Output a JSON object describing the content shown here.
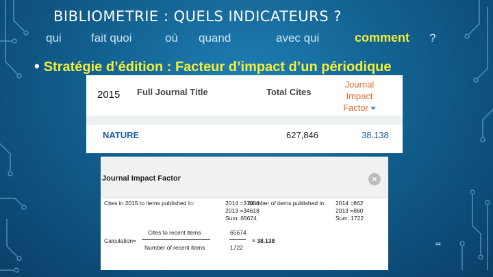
{
  "slide": {
    "title": "BIBLIOMETRIE : QUELS INDICATEURS ?",
    "questions": [
      "qui",
      "fait quoi",
      "où",
      "quand",
      "avec qui",
      "comment",
      "?"
    ],
    "bullet": "Stratégie d’édition : Facteur d’impact d’un périodique",
    "slide_number": "44"
  },
  "jcr_table": {
    "year": "2015",
    "col_title": "Full Journal Title",
    "col_cites": "Total Cites",
    "col_jif_line1": "Journal",
    "col_jif_line2": "Impact",
    "col_jif_line3": "Factor",
    "row": {
      "title": "NATURE",
      "cites": "627,846",
      "jif": "38.138"
    }
  },
  "jif_popup": {
    "title": "Journal Impact Factor",
    "cites_label": "Cites in 2015 to items published in:",
    "cites_2014": "2014 =31056",
    "cites_2013": "2013 =34618",
    "cites_sum": "Sum:  65674",
    "items_label": "Number of items published in:",
    "items_2014": "2014 =862",
    "items_2013": "2013 =860",
    "items_sum": "Sum:   1722",
    "calc_label": "Calculation=",
    "num_label": "Cites to recent items",
    "den_label": "Number of recent items",
    "num_value": "65674",
    "den_value": "1722",
    "result": "= 38.138"
  },
  "colors": {
    "accent_yellow": "#f2ef3c",
    "jif_orange": "#e8692a",
    "link_blue": "#1d5fa0"
  }
}
